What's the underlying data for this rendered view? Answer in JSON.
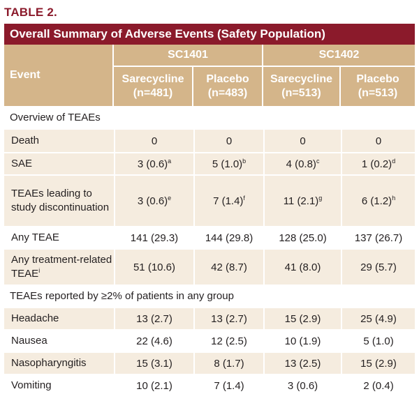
{
  "table_label": "TABLE 2.",
  "title": "Overall Summary of Adverse Events (Safety Population)",
  "header": {
    "event": "Event",
    "studies": [
      "SC1401",
      "SC1402"
    ],
    "arms": [
      {
        "name": "Sarecycline",
        "n": "(n=481)"
      },
      {
        "name": "Placebo",
        "n": "(n=483)"
      },
      {
        "name": "Sarecycline",
        "n": "(n=513)"
      },
      {
        "name": "Placebo",
        "n": "(n=513)"
      }
    ]
  },
  "sections": {
    "overview": "Overview of TEAEs",
    "reported": "TEAEs reported by ≥2% of patients in any group"
  },
  "overview_rows": [
    {
      "event": "Death",
      "event_sup": "",
      "cells": [
        {
          "v": "0",
          "s": ""
        },
        {
          "v": "0",
          "s": ""
        },
        {
          "v": "0",
          "s": ""
        },
        {
          "v": "0",
          "s": ""
        }
      ]
    },
    {
      "event": "SAE",
      "event_sup": "",
      "cells": [
        {
          "v": "3 (0.6)",
          "s": "a"
        },
        {
          "v": "5 (1.0)",
          "s": "b"
        },
        {
          "v": "4 (0.8)",
          "s": "c"
        },
        {
          "v": "1 (0.2)",
          "s": "d"
        }
      ]
    },
    {
      "event": "TEAEs leading to study discontinuation",
      "event_sup": "",
      "cells": [
        {
          "v": "3 (0.6)",
          "s": "e"
        },
        {
          "v": "7 (1.4)",
          "s": "f"
        },
        {
          "v": "11 (2.1)",
          "s": "g"
        },
        {
          "v": "6 (1.2)",
          "s": "h"
        }
      ]
    },
    {
      "event": "Any TEAE",
      "event_sup": "",
      "cells": [
        {
          "v": "141 (29.3)",
          "s": ""
        },
        {
          "v": "144 (29.8)",
          "s": ""
        },
        {
          "v": "128 (25.0)",
          "s": ""
        },
        {
          "v": "137 (26.7)",
          "s": ""
        }
      ]
    },
    {
      "event": "Any treatment-related TEAE",
      "event_sup": "i",
      "cells": [
        {
          "v": "51 (10.6)",
          "s": ""
        },
        {
          "v": "42 (8.7)",
          "s": ""
        },
        {
          "v": "41 (8.0)",
          "s": ""
        },
        {
          "v": "29 (5.7)",
          "s": ""
        }
      ]
    }
  ],
  "reported_rows": [
    {
      "event": "Headache",
      "cells": [
        "13 (2.7)",
        "13 (2.7)",
        "15 (2.9)",
        "25 (4.9)"
      ]
    },
    {
      "event": "Nausea",
      "cells": [
        "22 (4.6)",
        "12 (2.5)",
        "10 (1.9)",
        "5 (1.0)"
      ]
    },
    {
      "event": "Nasopharyngitis",
      "cells": [
        "15 (3.1)",
        "8 (1.7)",
        "13 (2.5)",
        "15 (2.9)"
      ]
    },
    {
      "event": "Vomiting",
      "cells": [
        "10 (2.1)",
        "7 (1.4)",
        "3 (0.6)",
        "2 (0.4)"
      ]
    }
  ],
  "colors": {
    "title_bar": "#8b1a2b",
    "header_bg": "#d4b58a",
    "row_bg": "#f5ecdf"
  }
}
